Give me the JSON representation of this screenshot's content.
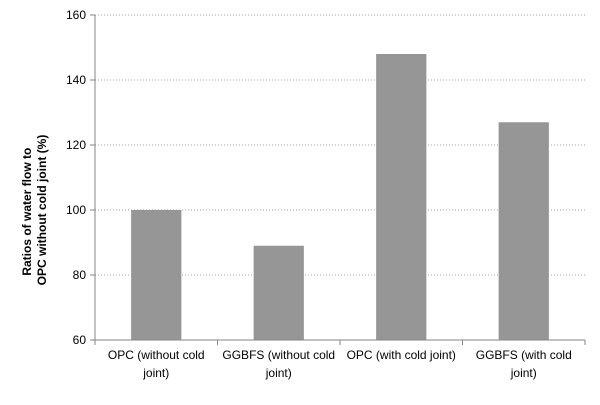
{
  "chart_data": {
    "type": "bar",
    "title": "",
    "xlabel": "",
    "ylabel_lines": [
      "Ratios of water flow to",
      "OPC without cold joint (%)"
    ],
    "categories": [
      [
        "OPC (without cold",
        "joint)"
      ],
      [
        "GGBFS (without cold",
        "joint)"
      ],
      [
        "OPC (with cold joint)"
      ],
      [
        "GGBFS (with cold",
        "joint)"
      ]
    ],
    "values": [
      100,
      89,
      148,
      127
    ],
    "ylim": [
      60,
      160
    ],
    "yticks": [
      60,
      80,
      100,
      120,
      140,
      160
    ],
    "grid": "horizontal dotted",
    "bar_color": "#969696",
    "grid_color": "#a6a6a6",
    "axis_color": "#868686"
  }
}
